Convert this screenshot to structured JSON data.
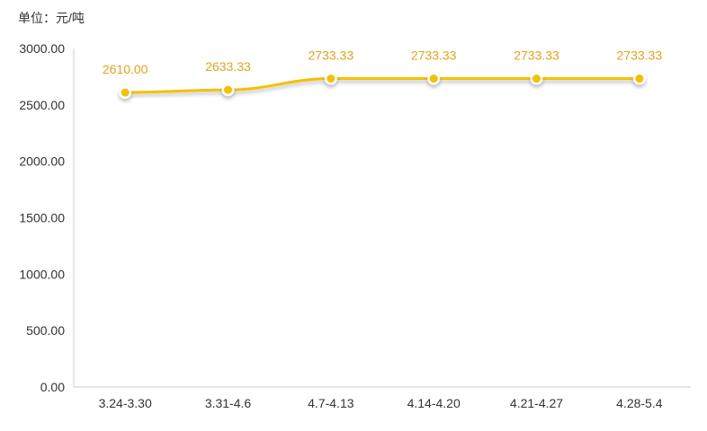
{
  "chart_data": {
    "type": "line",
    "unit_label": "单位：元/吨",
    "categories": [
      "3.24-3.30",
      "3.31-4.6",
      "4.7-4.13",
      "4.14-4.20",
      "4.21-4.27",
      "4.28-5.4"
    ],
    "values": [
      2610.0,
      2633.33,
      2733.33,
      2733.33,
      2733.33,
      2733.33
    ],
    "data_labels": [
      "2610.00",
      "2633.33",
      "2733.33",
      "2733.33",
      "2733.33",
      "2733.33"
    ],
    "y_ticks": [
      "0.00",
      "500.00",
      "1000.00",
      "1500.00",
      "2000.00",
      "2500.00",
      "3000.00"
    ],
    "ylim": [
      0,
      3000
    ],
    "grid": false,
    "colors": {
      "line": "#F5C000",
      "label": "#E8A317",
      "axis": "#CCCCCC",
      "text": "#333333"
    }
  }
}
